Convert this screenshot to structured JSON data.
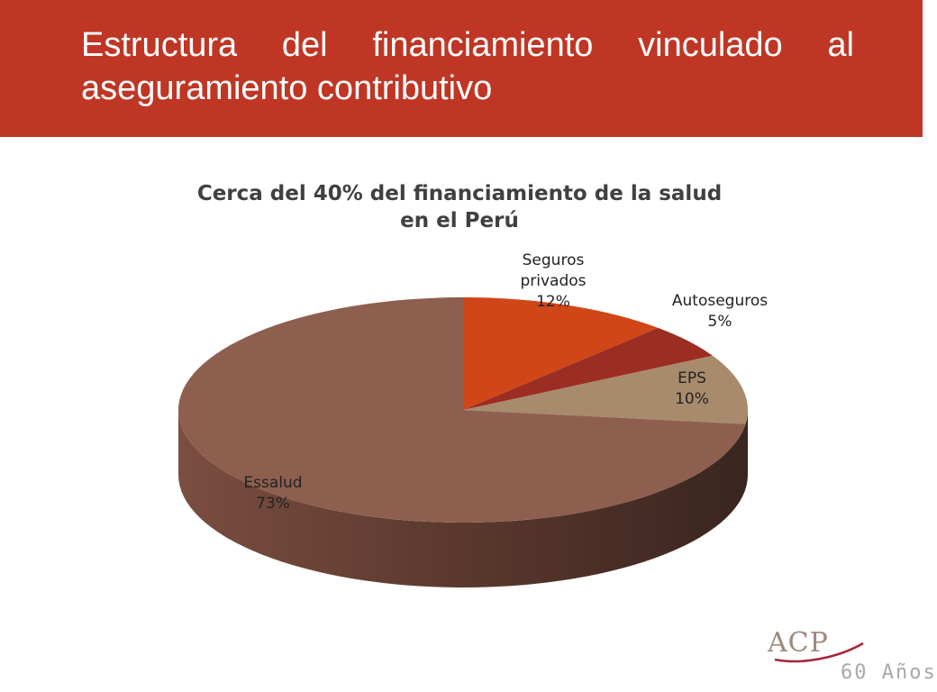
{
  "slide": {
    "title": "Estructura del financiamiento vinculado al aseguramiento contributivo",
    "logo_text": "ACP",
    "footer_text": "60 Años"
  },
  "colors": {
    "header_bg": "#bf3625",
    "essalud": "#8e5f4f",
    "seguros_privados": "#d04618",
    "autoseguros": "#9c2d22",
    "eps": "#a88b6d"
  },
  "chart_data": {
    "type": "pie",
    "title_lines": [
      "Cerca del 40% del financiamiento de la salud",
      "en el Perú"
    ],
    "slices": [
      {
        "name": "Seguros privados",
        "label_lines": [
          "Seguros",
          "privados"
        ],
        "value": 12,
        "value_label": "12%"
      },
      {
        "name": "Autoseguros",
        "label_lines": [
          "Autoseguros"
        ],
        "value": 5,
        "value_label": "5%"
      },
      {
        "name": "EPS",
        "label_lines": [
          "EPS"
        ],
        "value": 10,
        "value_label": "10%"
      },
      {
        "name": "Essalud",
        "label_lines": [
          "Essalud"
        ],
        "value": 73,
        "value_label": "73%"
      }
    ],
    "legend": "none",
    "style": "3d"
  }
}
